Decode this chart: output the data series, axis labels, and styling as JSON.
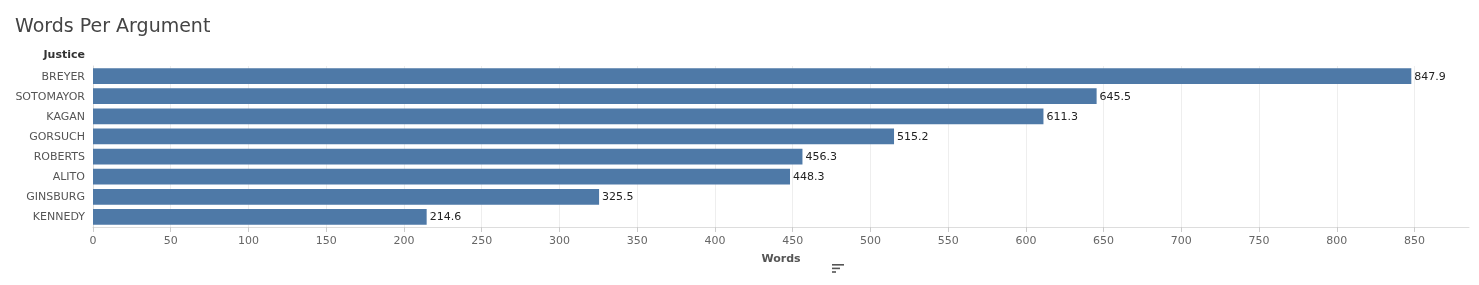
{
  "chart_data": {
    "type": "bar",
    "orientation": "horizontal",
    "title": "Words Per Argument",
    "ylabel": "Justice",
    "xlabel": "Words",
    "categories": [
      "BREYER",
      "SOTOMAYOR",
      "KAGAN",
      "GORSUCH",
      "ROBERTS",
      "ALITO",
      "GINSBURG",
      "KENNEDY"
    ],
    "values": [
      847.9,
      645.5,
      611.3,
      515.2,
      456.3,
      448.3,
      325.5,
      214.6
    ],
    "color": "#4e79a7",
    "xlim": [
      0,
      885
    ],
    "xticks": [
      0,
      50,
      100,
      150,
      200,
      250,
      300,
      350,
      400,
      450,
      500,
      550,
      600,
      650,
      700,
      750,
      800,
      850
    ],
    "grid": "x",
    "data_labels": true
  }
}
